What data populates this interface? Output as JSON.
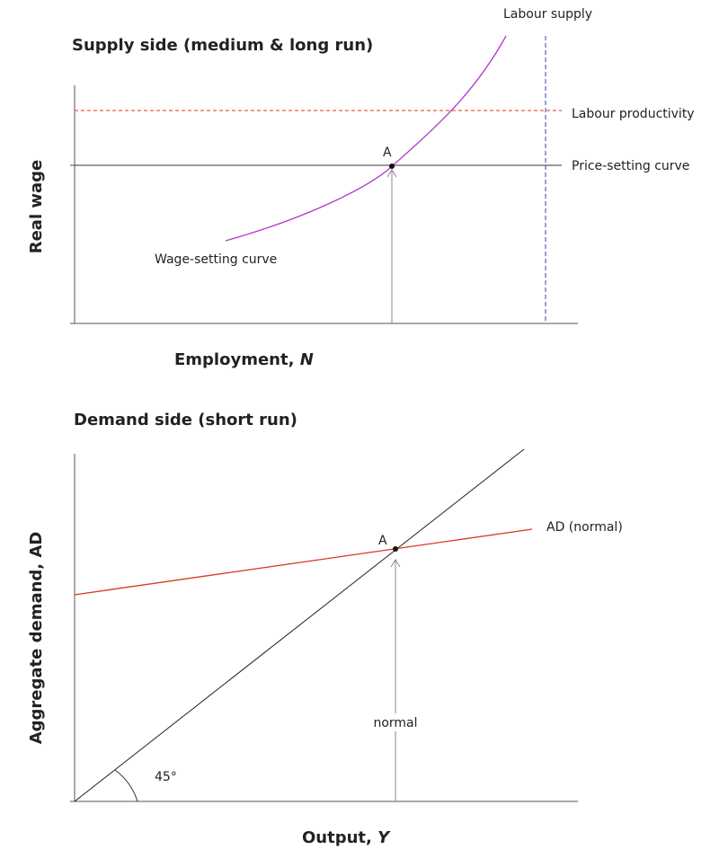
{
  "supply_panel": {
    "title": "Supply side (medium & long run)",
    "y_label": "Real wage",
    "x_label": "Employment,",
    "x_variable": "N",
    "labels": {
      "labour_supply": "Labour supply",
      "labour_productivity": "Labour productivity",
      "price_setting": "Price-setting curve",
      "wage_setting": "Wage-setting curve",
      "point": "A"
    }
  },
  "demand_panel": {
    "title": "Demand side (short run)",
    "y_label": "Aggregate demand, AD",
    "x_label": "Output,",
    "x_variable": "Y",
    "labels": {
      "ad": "AD (normal)",
      "point": "A",
      "normal": "normal",
      "angle": "45°"
    }
  }
}
